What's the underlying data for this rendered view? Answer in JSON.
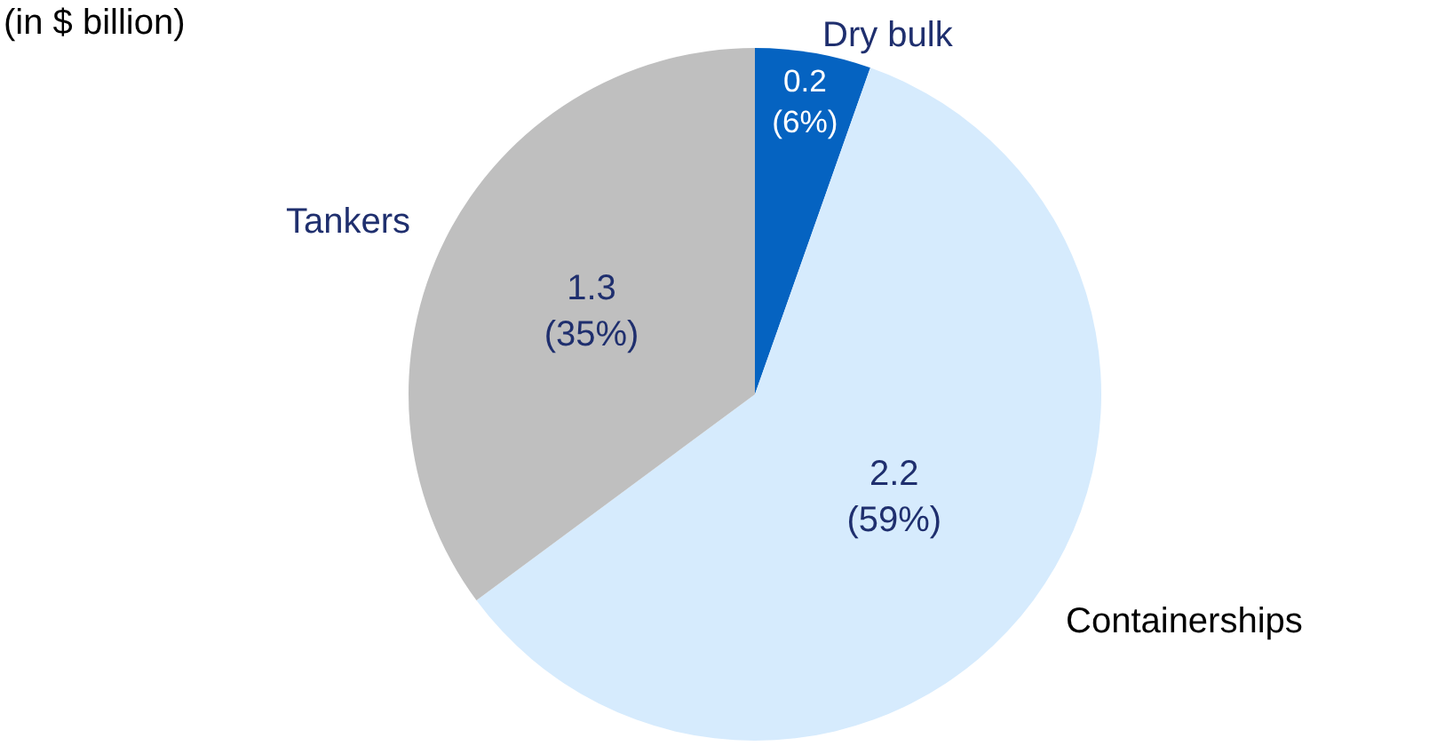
{
  "chart_data": {
    "type": "pie",
    "title": "(in $ billion)",
    "categories": [
      "Dry bulk",
      "Containerships",
      "Tankers"
    ],
    "values": [
      0.2,
      2.2,
      1.3
    ],
    "value_labels": [
      "0.2 (6%)",
      "2.2 (59%)",
      "1.3 (35%)"
    ],
    "colors": [
      "#0563c1",
      "#d6ebfd",
      "#bfbfbf"
    ],
    "legend": false
  }
}
